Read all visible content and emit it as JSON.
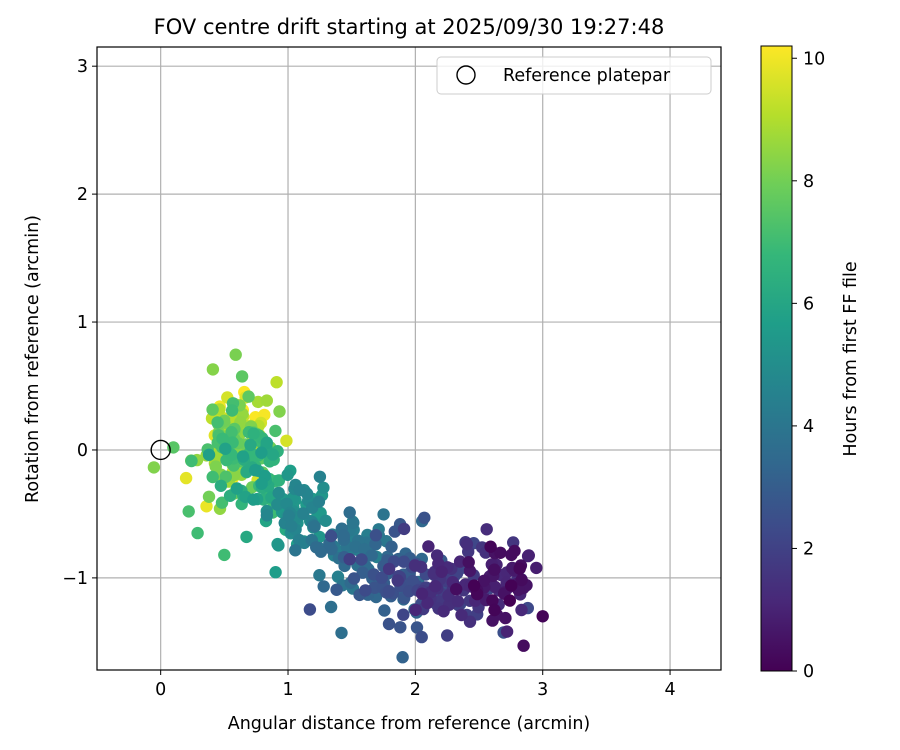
{
  "chart_data": {
    "type": "scatter",
    "title": "FOV centre drift starting at 2025/09/30 19:27:48",
    "xlabel": "Angular distance from reference (arcmin)",
    "ylabel": "Rotation from reference (arcmin)",
    "xlim": [
      -0.5,
      4.4
    ],
    "ylim": [
      -1.72,
      3.15
    ],
    "xticks": [
      "0",
      "1",
      "2",
      "3",
      "4"
    ],
    "xtick_values": [
      0,
      1,
      2,
      3,
      4
    ],
    "yticks": [
      "−1",
      "0",
      "1",
      "2",
      "3"
    ],
    "ytick_values": [
      -1,
      0,
      1,
      2,
      3
    ],
    "grid": true,
    "legend": {
      "label": "Reference platepar",
      "position": "top-right"
    },
    "reference_point": {
      "x": 0,
      "y": 0,
      "marker": "open-circle"
    },
    "colorbar": {
      "label": "Hours from first FF file",
      "min": 0,
      "max": 10.2,
      "ticks": [
        "0",
        "2",
        "4",
        "6",
        "8",
        "10"
      ],
      "tick_values": [
        0,
        2,
        4,
        6,
        8,
        10
      ],
      "colormap": "viridis",
      "colors": [
        "#440154",
        "#482878",
        "#3e4989",
        "#31688e",
        "#26828e",
        "#1f9e89",
        "#35b779",
        "#6ece58",
        "#b5de2b",
        "#fde725"
      ]
    },
    "series": [
      {
        "name": "FOV centre",
        "note": "approximate cluster representation of ~500 points, time increasing from lower-right to upper-left",
        "clusters": [
          {
            "cx": 2.65,
            "cy": -1.02,
            "sx": 0.16,
            "sy": 0.13,
            "t0": 0.0,
            "t1": 1.3,
            "n": 55
          },
          {
            "cx": 2.25,
            "cy": -1.05,
            "sx": 0.22,
            "sy": 0.17,
            "t0": 1.0,
            "t1": 2.6,
            "n": 90
          },
          {
            "cx": 1.85,
            "cy": -1.0,
            "sx": 0.2,
            "sy": 0.16,
            "t0": 2.3,
            "t1": 3.6,
            "n": 70
          },
          {
            "cx": 1.4,
            "cy": -0.78,
            "sx": 0.16,
            "sy": 0.17,
            "t0": 3.4,
            "t1": 4.6,
            "n": 55
          },
          {
            "cx": 1.05,
            "cy": -0.5,
            "sx": 0.14,
            "sy": 0.16,
            "t0": 4.4,
            "t1": 5.8,
            "n": 60
          },
          {
            "cx": 0.75,
            "cy": -0.2,
            "sx": 0.13,
            "sy": 0.16,
            "t0": 5.6,
            "t1": 7.1,
            "n": 55
          },
          {
            "cx": 0.55,
            "cy": 0.05,
            "sx": 0.15,
            "sy": 0.22,
            "t0": 6.8,
            "t1": 8.6,
            "n": 75
          },
          {
            "cx": 0.6,
            "cy": 0.12,
            "sx": 0.14,
            "sy": 0.17,
            "t0": 8.4,
            "t1": 10.2,
            "n": 70
          }
        ],
        "outliers": [
          {
            "x": 0.1,
            "y": 0.02,
            "t": 7.5
          },
          {
            "x": 0.2,
            "y": -0.22,
            "t": 9.8
          },
          {
            "x": 0.22,
            "y": -0.48,
            "t": 7.2
          },
          {
            "x": 0.29,
            "y": -0.65,
            "t": 7.0
          },
          {
            "x": 0.36,
            "y": -0.44,
            "t": 9.9
          },
          {
            "x": 0.5,
            "y": -0.82,
            "t": 7.0
          },
          {
            "x": 0.41,
            "y": 0.63,
            "t": 8.3
          },
          {
            "x": 0.91,
            "y": 0.53,
            "t": 9.2
          },
          {
            "x": 1.9,
            "y": -1.62,
            "t": 3.2
          },
          {
            "x": 2.07,
            "y": -0.53,
            "t": 2.6
          },
          {
            "x": 2.56,
            "y": -0.62,
            "t": 1.3
          },
          {
            "x": 2.85,
            "y": -1.53,
            "t": 0.3
          },
          {
            "x": 3.0,
            "y": -1.3,
            "t": 0.1
          },
          {
            "x": 1.25,
            "y": -0.21,
            "t": 4.5
          },
          {
            "x": 1.88,
            "y": -0.58,
            "t": 2.8
          },
          {
            "x": 2.72,
            "y": -1.42,
            "t": 1.0
          },
          {
            "x": 1.42,
            "y": -1.43,
            "t": 3.7
          },
          {
            "x": 2.25,
            "y": -1.45,
            "t": 1.9
          }
        ]
      }
    ]
  }
}
